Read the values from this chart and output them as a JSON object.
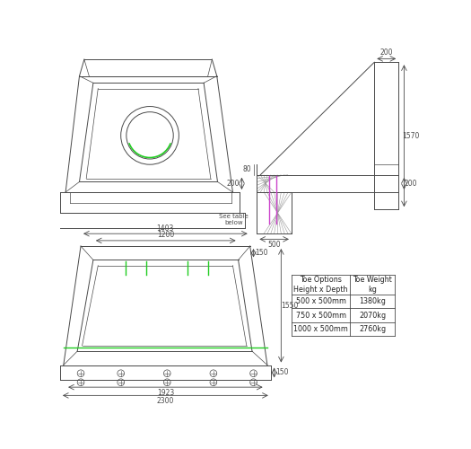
{
  "bg_color": "#ffffff",
  "line_color": "#4a4a4a",
  "dim_color": "#4a4a4a",
  "green_color": "#22cc22",
  "magenta_color": "#cc44cc",
  "table_data": [
    [
      "Toe Options\nHeight x Depth",
      "Toe Weight\nkg"
    ],
    [
      "500 x 500mm",
      "1380kg"
    ],
    [
      "750 x 500mm",
      "2070kg"
    ],
    [
      "1000 x 500mm",
      "2760kg"
    ]
  ],
  "font_size_dim": 5.5,
  "font_size_table": 5.8
}
